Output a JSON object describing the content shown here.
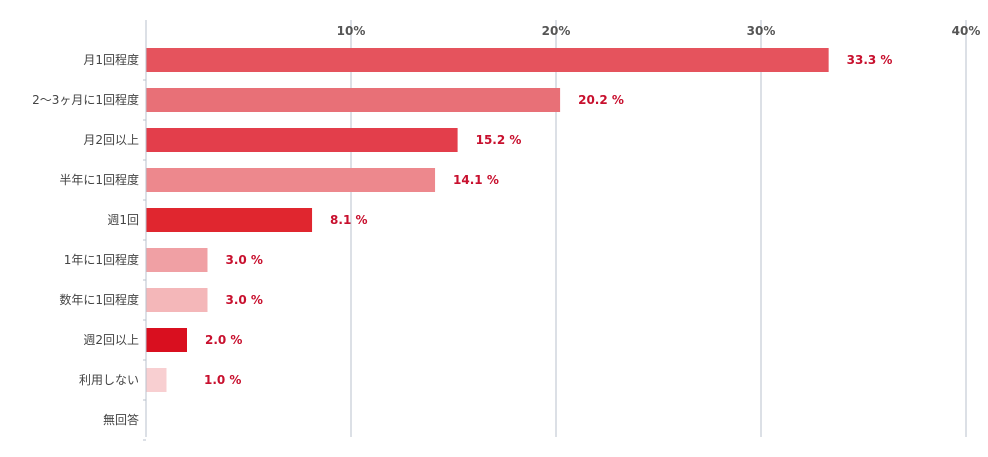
{
  "chart_data": {
    "type": "bar",
    "orientation": "horizontal",
    "categories": [
      "月1回程度",
      "2〜3ヶ月に1回程度",
      "月2回以上",
      "半年に1回程度",
      "週1回",
      "1年に1回程度",
      "数年に1回程度",
      "週2回以上",
      "利用しない",
      "無回答"
    ],
    "values": [
      33.3,
      20.2,
      15.2,
      14.1,
      8.1,
      3.0,
      3.0,
      2.0,
      1.0,
      0
    ],
    "data_labels": [
      "33.3 %",
      "20.2 %",
      "15.2 %",
      "14.1 %",
      "8.1 %",
      "3.0 %",
      "3.0 %",
      "2.0 %",
      "1.0 %",
      ""
    ],
    "bar_colors": [
      "#e5535d",
      "#e87077",
      "#e33e4b",
      "#ed888d",
      "#e0262f",
      "#f0a0a4",
      "#f4b7b9",
      "#d90f1f",
      "#f8cfd1",
      "#ffffff"
    ],
    "x_ticks": [
      10,
      20,
      30,
      40
    ],
    "x_tick_labels": [
      "10%",
      "20%",
      "30%",
      "40%"
    ],
    "xlim": [
      0,
      40
    ],
    "grid": true,
    "label_color": "#c8102e",
    "grid_color": "#b8c2cc",
    "title": "",
    "xlabel": "",
    "ylabel": ""
  }
}
